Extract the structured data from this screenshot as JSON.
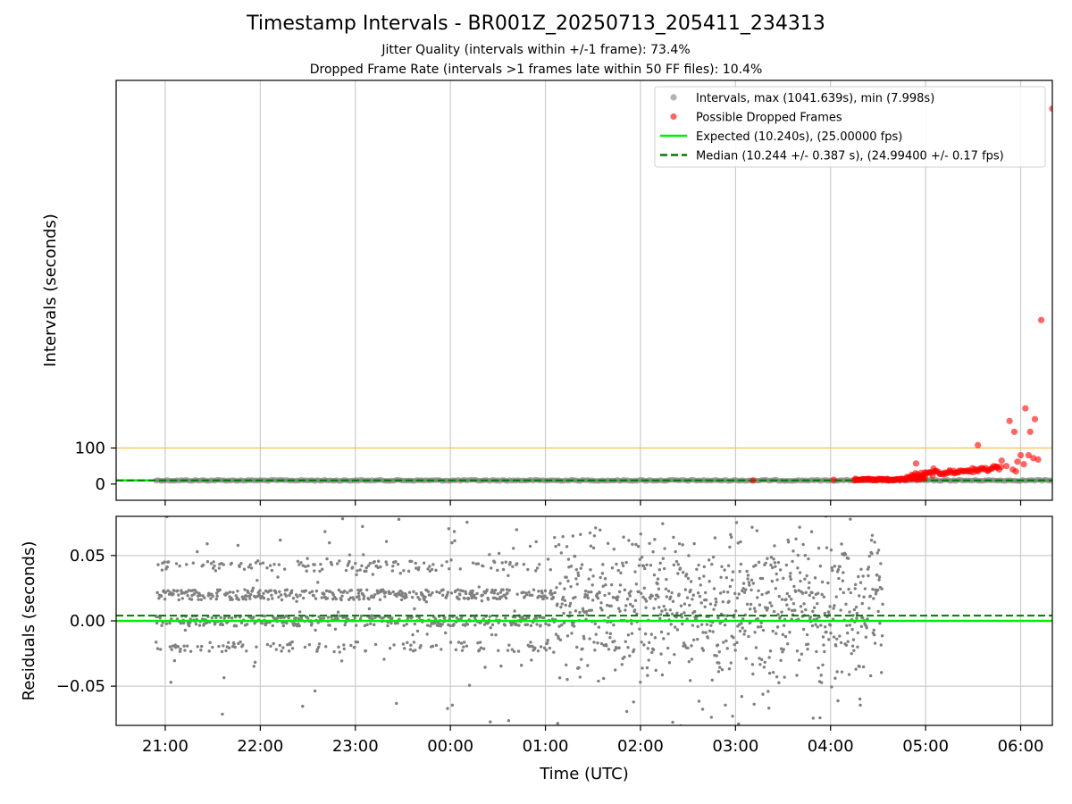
{
  "title": "Timestamp Intervals - BR001Z_20250713_205411_234313",
  "subtitle_1": "Jitter Quality (intervals within +/-1 frame): 73.4%",
  "subtitle_2": "Dropped Frame Rate (intervals >1 frames late within 50 FF files): 10.4%",
  "colors": {
    "intervals": "#808080",
    "dropped": "#ff0000",
    "expected": "#00ee00",
    "median": "#007a00",
    "threshold": "#ffc04d",
    "grid": "#cccccc"
  },
  "chart_data": [
    {
      "type": "scatter",
      "x_axis": "time_utc_hours",
      "ylabel": "Intervals (seconds)",
      "xlim": [
        "20:29",
        "06:20"
      ],
      "ylim": [
        -45,
        1120
      ],
      "y_ticks": [
        0,
        100
      ],
      "y_tick_labels": [
        "0",
        "100"
      ],
      "x_ticks": [
        "21:00",
        "22:00",
        "23:00",
        "00:00",
        "01:00",
        "02:00",
        "03:00",
        "04:00",
        "05:00",
        "06:00"
      ],
      "grid": "vertical",
      "legend_position": "upper right",
      "legend": [
        {
          "key": "intervals",
          "label": "Intervals, max (1041.639s), min (7.998s)"
        },
        {
          "key": "dropped",
          "label": "Possible Dropped Frames"
        },
        {
          "key": "expected",
          "label": "Expected (10.240s), (25.00000 fps)"
        },
        {
          "key": "median",
          "label": "Median (10.244 +/- 0.387 s), (24.99400 +/- 0.17 fps)"
        }
      ],
      "reference_lines": {
        "expected": 10.24,
        "median": 10.244,
        "threshold": 100
      },
      "intervals_band": {
        "x_start": "20:54",
        "x_end": "06:20",
        "value": 10.24
      },
      "dropped_points": [
        [
          "03:11",
          10
        ],
        [
          "04:02",
          12
        ],
        [
          "04:16",
          11
        ],
        [
          "04:20",
          12
        ],
        [
          "04:24",
          12
        ],
        [
          "04:28",
          11
        ],
        [
          "04:32",
          12
        ],
        [
          "04:36",
          13
        ],
        [
          "04:40",
          12
        ],
        [
          "04:44",
          14
        ],
        [
          "04:48",
          14
        ],
        [
          "04:52",
          18
        ],
        [
          "04:55",
          22
        ],
        [
          "04:58",
          25
        ],
        [
          "05:00",
          30
        ],
        [
          "05:03",
          32
        ],
        [
          "05:06",
          36
        ],
        [
          "05:09",
          28
        ],
        [
          "05:12",
          32
        ],
        [
          "05:15",
          35
        ],
        [
          "05:18",
          30
        ],
        [
          "05:21",
          33
        ],
        [
          "05:24",
          36
        ],
        [
          "05:27",
          38
        ],
        [
          "05:30",
          33
        ],
        [
          "05:33",
          40
        ],
        [
          "05:36",
          42
        ],
        [
          "05:39",
          38
        ],
        [
          "05:42",
          44
        ],
        [
          "05:45",
          46
        ],
        [
          "04:54",
          57
        ],
        [
          "05:05",
          43
        ],
        [
          "05:33",
          108
        ],
        [
          "05:55",
          40
        ],
        [
          "05:48",
          65
        ],
        [
          "05:51",
          50
        ],
        [
          "05:57",
          35
        ],
        [
          "05:58",
          62
        ],
        [
          "06:00",
          80
        ],
        [
          "06:02",
          55
        ],
        [
          "06:05",
          80
        ],
        [
          "06:08",
          72
        ],
        [
          "05:53",
          175
        ],
        [
          "05:56",
          145
        ],
        [
          "06:03",
          210
        ],
        [
          "06:06",
          145
        ],
        [
          "06:09",
          180
        ],
        [
          "06:11",
          68
        ],
        [
          "06:13",
          455
        ],
        [
          "06:20",
          1041.639
        ]
      ]
    },
    {
      "type": "scatter",
      "x_axis": "time_utc_hours",
      "xlabel": "Time (UTC)",
      "ylabel": "Residuals (seconds)",
      "xlim": [
        "20:29",
        "06:20"
      ],
      "ylim": [
        -0.08,
        0.08
      ],
      "y_ticks": [
        0.05,
        0.0,
        -0.05
      ],
      "y_tick_labels": [
        "0.05",
        "0.00",
        "−0.05"
      ],
      "x_ticks": [
        "21:00",
        "22:00",
        "23:00",
        "00:00",
        "01:00",
        "02:00",
        "03:00",
        "04:00",
        "05:00",
        "06:00"
      ],
      "grid": "both",
      "reference_lines": {
        "expected": 0.0,
        "median": 0.004
      },
      "residual_range": {
        "x_start": "20:54",
        "x_end": "04:33"
      },
      "residual_levels": [
        -0.02,
        0.0,
        0.02,
        0.042
      ]
    }
  ]
}
